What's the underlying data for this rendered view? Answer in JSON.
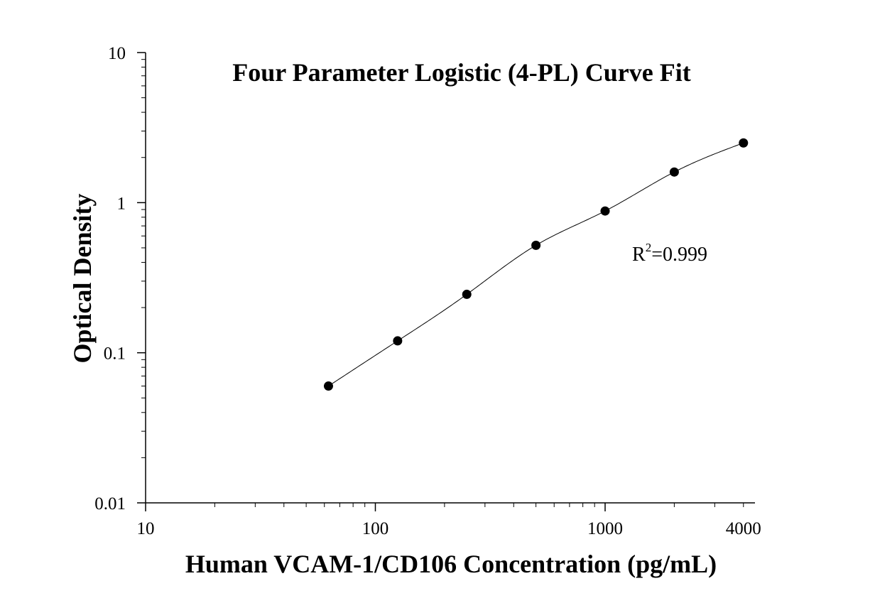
{
  "chart_data": {
    "type": "scatter",
    "title": "Four Parameter Logistic (4-PL) Curve Fit",
    "xlabel": "Human VCAM-1/CD106 Concentration (pg/mL)",
    "ylabel": "Optical Density",
    "x_scale": "log",
    "y_scale": "log",
    "xlim": [
      10,
      4000
    ],
    "ylim": [
      0.01,
      10
    ],
    "x_ticks": [
      {
        "value": 10,
        "label": "10"
      },
      {
        "value": 100,
        "label": "100"
      },
      {
        "value": 1000,
        "label": "1000"
      },
      {
        "value": 4000,
        "label": "4000"
      }
    ],
    "y_ticks": [
      {
        "value": 0.01,
        "label": "0.01"
      },
      {
        "value": 0.1,
        "label": "0.1"
      },
      {
        "value": 1,
        "label": "1"
      },
      {
        "value": 10,
        "label": "10"
      }
    ],
    "grid": false,
    "series": [
      {
        "x": [
          62.5,
          125,
          250,
          500,
          1000,
          2000,
          4000
        ],
        "y": [
          0.06,
          0.12,
          0.245,
          0.52,
          0.88,
          1.6,
          2.5
        ]
      }
    ],
    "fit_curve": {
      "type": "4-PL",
      "x_range": [
        62.5,
        4000
      ]
    },
    "annotation": {
      "base": "R",
      "superscript": "2",
      "value": "=0.999"
    }
  }
}
